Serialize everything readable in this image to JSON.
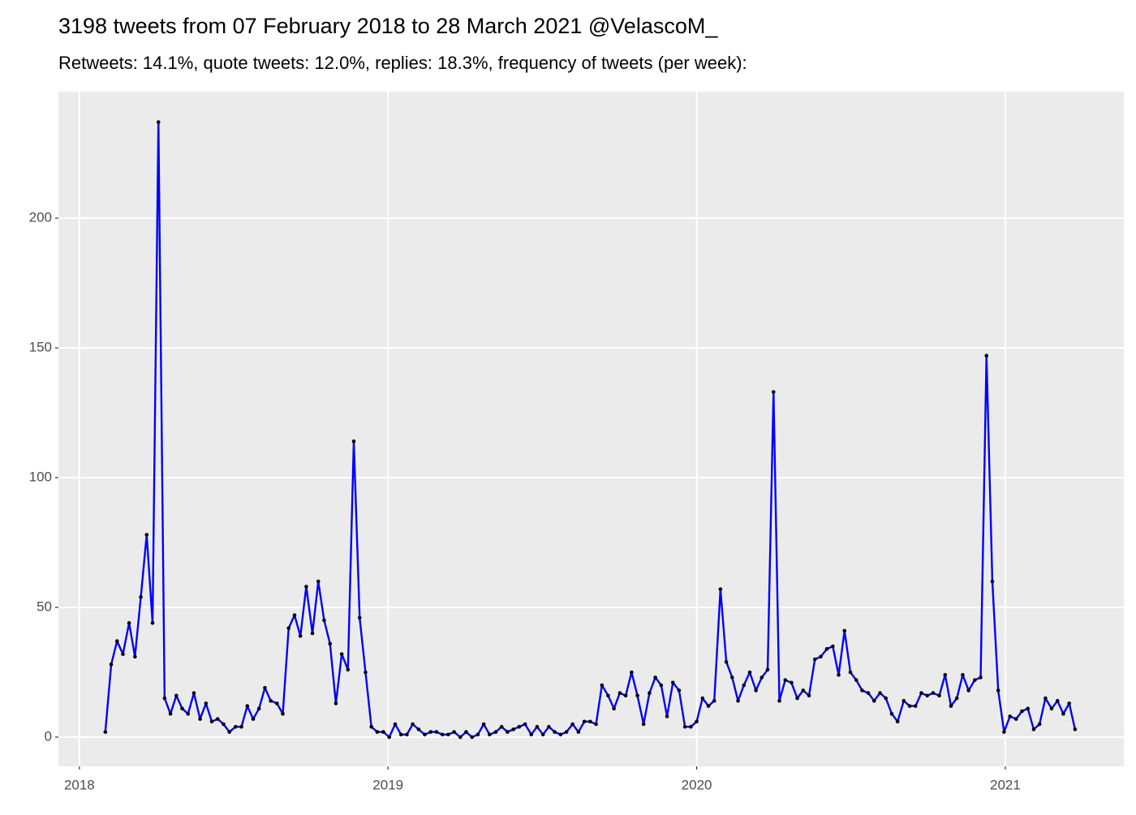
{
  "chart_data": {
    "type": "line",
    "title": "3198 tweets from 07 February 2018 to 28 March 2021 @VelascoM_",
    "subtitle": "Retweets: 14.1%, quote tweets: 12.0%, replies: 18.3%, frequency of tweets (per week):",
    "x": [
      2018.084,
      2018.103,
      2018.122,
      2018.141,
      2018.161,
      2018.18,
      2018.199,
      2018.218,
      2018.237,
      2018.256,
      2018.276,
      2018.295,
      2018.314,
      2018.333,
      2018.352,
      2018.371,
      2018.391,
      2018.41,
      2018.429,
      2018.448,
      2018.467,
      2018.486,
      2018.506,
      2018.525,
      2018.544,
      2018.563,
      2018.582,
      2018.601,
      2018.62,
      2018.64,
      2018.659,
      2018.678,
      2018.697,
      2018.716,
      2018.735,
      2018.755,
      2018.774,
      2018.793,
      2018.812,
      2018.831,
      2018.85,
      2018.87,
      2018.889,
      2018.908,
      2018.927,
      2018.946,
      2018.965,
      2018.985,
      2019.004,
      2019.023,
      2019.042,
      2019.061,
      2019.08,
      2019.099,
      2019.119,
      2019.138,
      2019.157,
      2019.176,
      2019.195,
      2019.214,
      2019.234,
      2019.253,
      2019.272,
      2019.291,
      2019.31,
      2019.329,
      2019.349,
      2019.368,
      2019.387,
      2019.406,
      2019.425,
      2019.444,
      2019.464,
      2019.483,
      2019.502,
      2019.521,
      2019.54,
      2019.559,
      2019.578,
      2019.598,
      2019.617,
      2019.636,
      2019.655,
      2019.674,
      2019.693,
      2019.713,
      2019.732,
      2019.751,
      2019.77,
      2019.789,
      2019.808,
      2019.828,
      2019.847,
      2019.866,
      2019.885,
      2019.904,
      2019.923,
      2019.943,
      2019.962,
      2019.981,
      2020.0,
      2020.019,
      2020.038,
      2020.057,
      2020.077,
      2020.096,
      2020.115,
      2020.134,
      2020.153,
      2020.172,
      2020.192,
      2020.211,
      2020.23,
      2020.249,
      2020.268,
      2020.287,
      2020.307,
      2020.326,
      2020.345,
      2020.364,
      2020.383,
      2020.402,
      2020.422,
      2020.441,
      2020.46,
      2020.479,
      2020.498,
      2020.517,
      2020.536,
      2020.556,
      2020.575,
      2020.594,
      2020.613,
      2020.632,
      2020.651,
      2020.671,
      2020.69,
      2020.709,
      2020.728,
      2020.747,
      2020.766,
      2020.786,
      2020.805,
      2020.824,
      2020.843,
      2020.862,
      2020.881,
      2020.901,
      2020.92,
      2020.939,
      2020.958,
      2020.977,
      2020.996,
      2021.015,
      2021.035,
      2021.054,
      2021.073,
      2021.092,
      2021.111,
      2021.13,
      2021.15,
      2021.169,
      2021.188,
      2021.207,
      2021.226
    ],
    "series": [
      {
        "color": "#0000ff",
        "values": [
          2,
          28,
          37,
          32,
          44,
          31,
          54,
          78,
          44,
          237,
          15,
          9,
          16,
          11,
          9,
          17,
          7,
          13,
          6,
          7,
          5,
          2,
          4,
          4,
          12,
          7,
          11,
          19,
          14,
          13,
          9,
          42,
          47,
          39,
          58,
          40,
          60,
          45,
          36,
          13,
          32,
          26,
          114,
          46,
          25,
          4,
          2,
          2,
          0,
          5,
          1,
          1,
          5,
          3,
          1,
          2,
          2,
          1,
          1,
          2,
          0,
          2,
          0,
          1,
          5,
          1,
          2,
          4,
          2,
          3,
          4,
          5,
          1,
          4,
          1,
          4,
          2,
          1,
          2,
          5,
          2,
          6,
          6,
          5,
          20,
          16,
          11,
          17,
          16,
          25,
          16,
          5,
          17,
          23,
          20,
          8,
          21,
          18,
          4,
          4,
          6,
          15,
          12,
          14,
          57,
          29,
          23,
          14,
          20,
          25,
          18,
          23,
          26,
          133,
          14,
          22,
          21,
          15,
          18,
          16,
          30,
          31,
          34,
          35,
          24,
          41,
          25,
          22,
          18,
          17,
          14,
          17,
          15,
          9,
          6,
          14,
          12,
          12,
          17,
          16,
          17,
          16,
          24,
          12,
          15,
          24,
          18,
          22,
          23,
          147,
          60,
          18,
          2,
          8,
          7,
          10,
          11,
          3,
          5,
          15,
          11,
          14,
          9,
          13,
          3
        ]
      }
    ],
    "point_color": "#000000",
    "panel_color": "#ebebeb",
    "grid": true,
    "xlim": [
      2017.932,
      2021.384
    ],
    "ylim": [
      -11.25,
      248.75
    ],
    "xticks": [
      2018,
      2019,
      2020,
      2021
    ],
    "yticks": [
      0,
      50,
      100,
      150,
      200
    ]
  }
}
